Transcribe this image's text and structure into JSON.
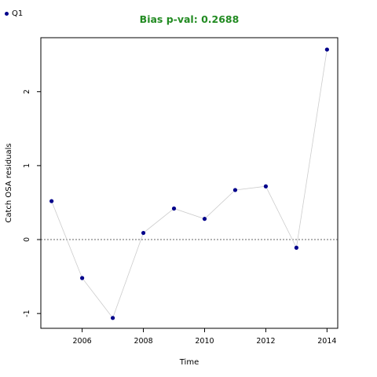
{
  "colors": {
    "point": "#00008B",
    "line": "#cccccc",
    "title": "#228B22",
    "refline": "#333333"
  },
  "legend": {
    "label": "Q1",
    "icon": "filled-circle"
  },
  "chart_data": {
    "type": "scatter",
    "title": "Bias p-val: 0.2688",
    "xlabel": "Time",
    "ylabel": "Catch OSA residuals",
    "xlim": [
      2004.65,
      2014.35
    ],
    "ylim": [
      -1.2,
      2.73
    ],
    "x_ticks": [
      2006,
      2008,
      2010,
      2012,
      2014
    ],
    "y_ticks": [
      -1,
      0,
      1,
      2
    ],
    "reference_line": {
      "y": 0,
      "style": "dotted"
    },
    "connect_points": true,
    "grid": false,
    "legend_position": "top-left",
    "series": [
      {
        "name": "Q1",
        "x": [
          2005,
          2006,
          2007,
          2008,
          2009,
          2010,
          2011,
          2012,
          2013,
          2014
        ],
        "y": [
          0.52,
          -0.52,
          -1.06,
          0.09,
          0.42,
          0.28,
          0.67,
          0.72,
          -0.11,
          2.57
        ]
      }
    ]
  }
}
